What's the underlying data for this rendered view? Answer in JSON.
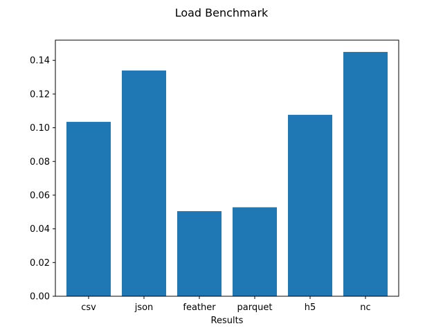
{
  "chart_data": {
    "type": "bar",
    "title": "Load Benchmark",
    "xlabel": "Results",
    "ylabel": "",
    "categories": [
      "csv",
      "json",
      "feather",
      "parquet",
      "h5",
      "nc"
    ],
    "values": [
      0.1035,
      0.134,
      0.0505,
      0.0528,
      0.1077,
      0.145
    ],
    "ylim": [
      0,
      0.152
    ],
    "yticks": [
      0.0,
      0.02,
      0.04,
      0.06,
      0.08,
      0.1,
      0.12,
      0.14
    ],
    "ytick_labels": [
      "0.00",
      "0.02",
      "0.04",
      "0.06",
      "0.08",
      "0.10",
      "0.12",
      "0.14"
    ],
    "grid": false,
    "legend": "none",
    "colors": {
      "bar": "#1f77b4",
      "axis": "#000000",
      "background": "#ffffff"
    }
  }
}
